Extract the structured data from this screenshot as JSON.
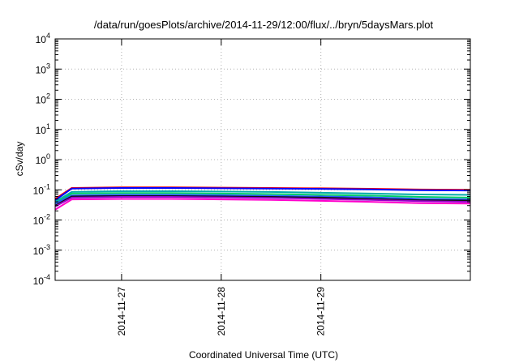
{
  "chart_data": {
    "type": "line",
    "title": "/data/run/goesPlots/archive/2014-11-29/12:00/flux/../bryn/5daysMars.plot",
    "xlabel": "Coordinated Universal Time (UTC)",
    "ylabel": "cSv/day",
    "yscale": "log",
    "ylim": [
      0.0001,
      10000
    ],
    "ytick_values": [
      0.0001,
      0.001,
      0.01,
      0.1,
      1,
      10,
      100,
      1000,
      10000
    ],
    "ytick_labels": [
      {
        "base": "10",
        "exp": "-4"
      },
      {
        "base": "10",
        "exp": "-3"
      },
      {
        "base": "10",
        "exp": "-2"
      },
      {
        "base": "10",
        "exp": "-1"
      },
      {
        "base": "10",
        "exp": "0"
      },
      {
        "base": "10",
        "exp": "1"
      },
      {
        "base": "10",
        "exp": "2"
      },
      {
        "base": "10",
        "exp": "3"
      },
      {
        "base": "10",
        "exp": "4"
      }
    ],
    "xlim": [
      "2014-11-26 08:00",
      "2014-11-30 12:00"
    ],
    "xticks": [
      {
        "value": "2014-11-27 00:00",
        "label": "2014-11-27"
      },
      {
        "value": "2014-11-28 00:00",
        "label": "2014-11-28"
      },
      {
        "value": "2014-11-29 00:00",
        "label": "2014-11-29"
      }
    ],
    "grid": true,
    "legend": "none",
    "x": [
      "2014-11-26 08:00",
      "2014-11-26 12:00",
      "2014-11-27 00:00",
      "2014-11-27 12:00",
      "2014-11-28 00:00",
      "2014-11-28 12:00",
      "2014-11-29 00:00",
      "2014-11-29 12:00",
      "2014-11-30 00:00",
      "2014-11-30 12:00"
    ],
    "series": [
      {
        "color": "#ff0000",
        "values": [
          0.05,
          0.115,
          0.12,
          0.12,
          0.118,
          0.115,
          0.112,
          0.108,
          0.102,
          0.1
        ]
      },
      {
        "color": "#0000ff",
        "values": [
          0.045,
          0.11,
          0.115,
          0.115,
          0.112,
          0.11,
          0.107,
          0.103,
          0.097,
          0.095
        ]
      },
      {
        "color": "#00aaaa",
        "values": [
          0.04,
          0.085,
          0.09,
          0.09,
          0.088,
          0.085,
          0.08,
          0.075,
          0.07,
          0.068
        ]
      },
      {
        "color": "#00cc66",
        "values": [
          0.035,
          0.075,
          0.078,
          0.078,
          0.075,
          0.072,
          0.068,
          0.064,
          0.058,
          0.055
        ]
      },
      {
        "color": "#2255ff",
        "values": [
          0.035,
          0.065,
          0.068,
          0.068,
          0.066,
          0.063,
          0.06,
          0.056,
          0.05,
          0.048
        ]
      },
      {
        "color": "#111111",
        "values": [
          0.03,
          0.06,
          0.062,
          0.062,
          0.06,
          0.058,
          0.055,
          0.05,
          0.045,
          0.044
        ]
      },
      {
        "color": "#9900cc",
        "values": [
          0.028,
          0.055,
          0.058,
          0.058,
          0.056,
          0.054,
          0.05,
          0.046,
          0.042,
          0.04
        ]
      },
      {
        "color": "#ff00cc",
        "values": [
          0.022,
          0.048,
          0.05,
          0.05,
          0.048,
          0.046,
          0.043,
          0.04,
          0.036,
          0.035
        ]
      }
    ]
  }
}
